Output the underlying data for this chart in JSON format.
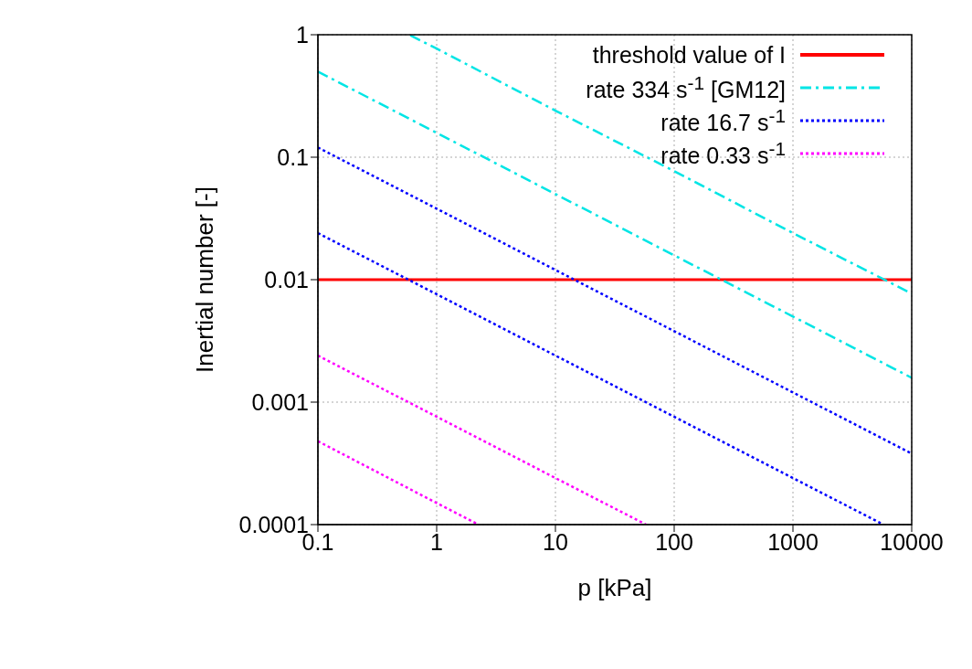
{
  "chart_data": {
    "type": "line",
    "xlabel": "p [kPa]",
    "ylabel": "Inertial number [-]",
    "log": "xy",
    "grid": true,
    "legend": "top right",
    "xlim": [
      0.1,
      10000
    ],
    "xticks": [
      0.1,
      1,
      10,
      100,
      1000,
      10000
    ],
    "ylim": [
      0.0001,
      1
    ],
    "yticks": [
      0.0001,
      0.001,
      0.01,
      0.1,
      1
    ],
    "series": [
      {
        "name": "threshold value of I",
        "color": "#ff0000",
        "line_style": "solid",
        "x": [
          0.1,
          10000
        ],
        "values": [
          0.01,
          0.01
        ]
      },
      {
        "name": "rate 334 s$^{-1}$ [GM12]",
        "color": "#00e5e5",
        "line_style": "dashed",
        "x": [
          0.6,
          1,
          10,
          100,
          1000,
          10000
        ],
        "values": [
          0.99,
          0.77,
          0.24,
          0.077,
          0.024,
          0.0077
        ]
      },
      {
        "color": "#00e5e5",
        "line_style": "dashed",
        "x": [
          0.1,
          1,
          10,
          100,
          1000,
          10000
        ],
        "values": [
          0.5,
          0.158,
          0.05,
          0.0158,
          0.005,
          0.00158
        ]
      },
      {
        "name": "rate 16.7 s$^{-1}$",
        "color": "#0000ff",
        "line_style": "dotted",
        "x": [
          0.1,
          1,
          10,
          100,
          1000,
          10000
        ],
        "values": [
          0.12,
          0.038,
          0.012,
          0.0038,
          0.0012,
          0.00038
        ]
      },
      {
        "color": "#0000ff",
        "line_style": "dotted",
        "x": [
          0.1,
          1,
          10,
          100,
          1000,
          5776
        ],
        "values": [
          0.024,
          0.0076,
          0.0024,
          0.00076,
          0.00024,
          0.0001
        ]
      },
      {
        "name": "rate 0.33 s$^{-1}$",
        "color": "#ff00ff",
        "line_style": "dotted",
        "x": [
          0.1,
          1,
          10,
          58
        ],
        "values": [
          0.0024,
          0.00076,
          0.00024,
          0.0001
        ]
      },
      {
        "color": "#ff00ff",
        "line_style": "dotted",
        "x": [
          0.1,
          1,
          2.25
        ],
        "values": [
          0.00048,
          0.00015,
          0.0001
        ]
      }
    ]
  }
}
